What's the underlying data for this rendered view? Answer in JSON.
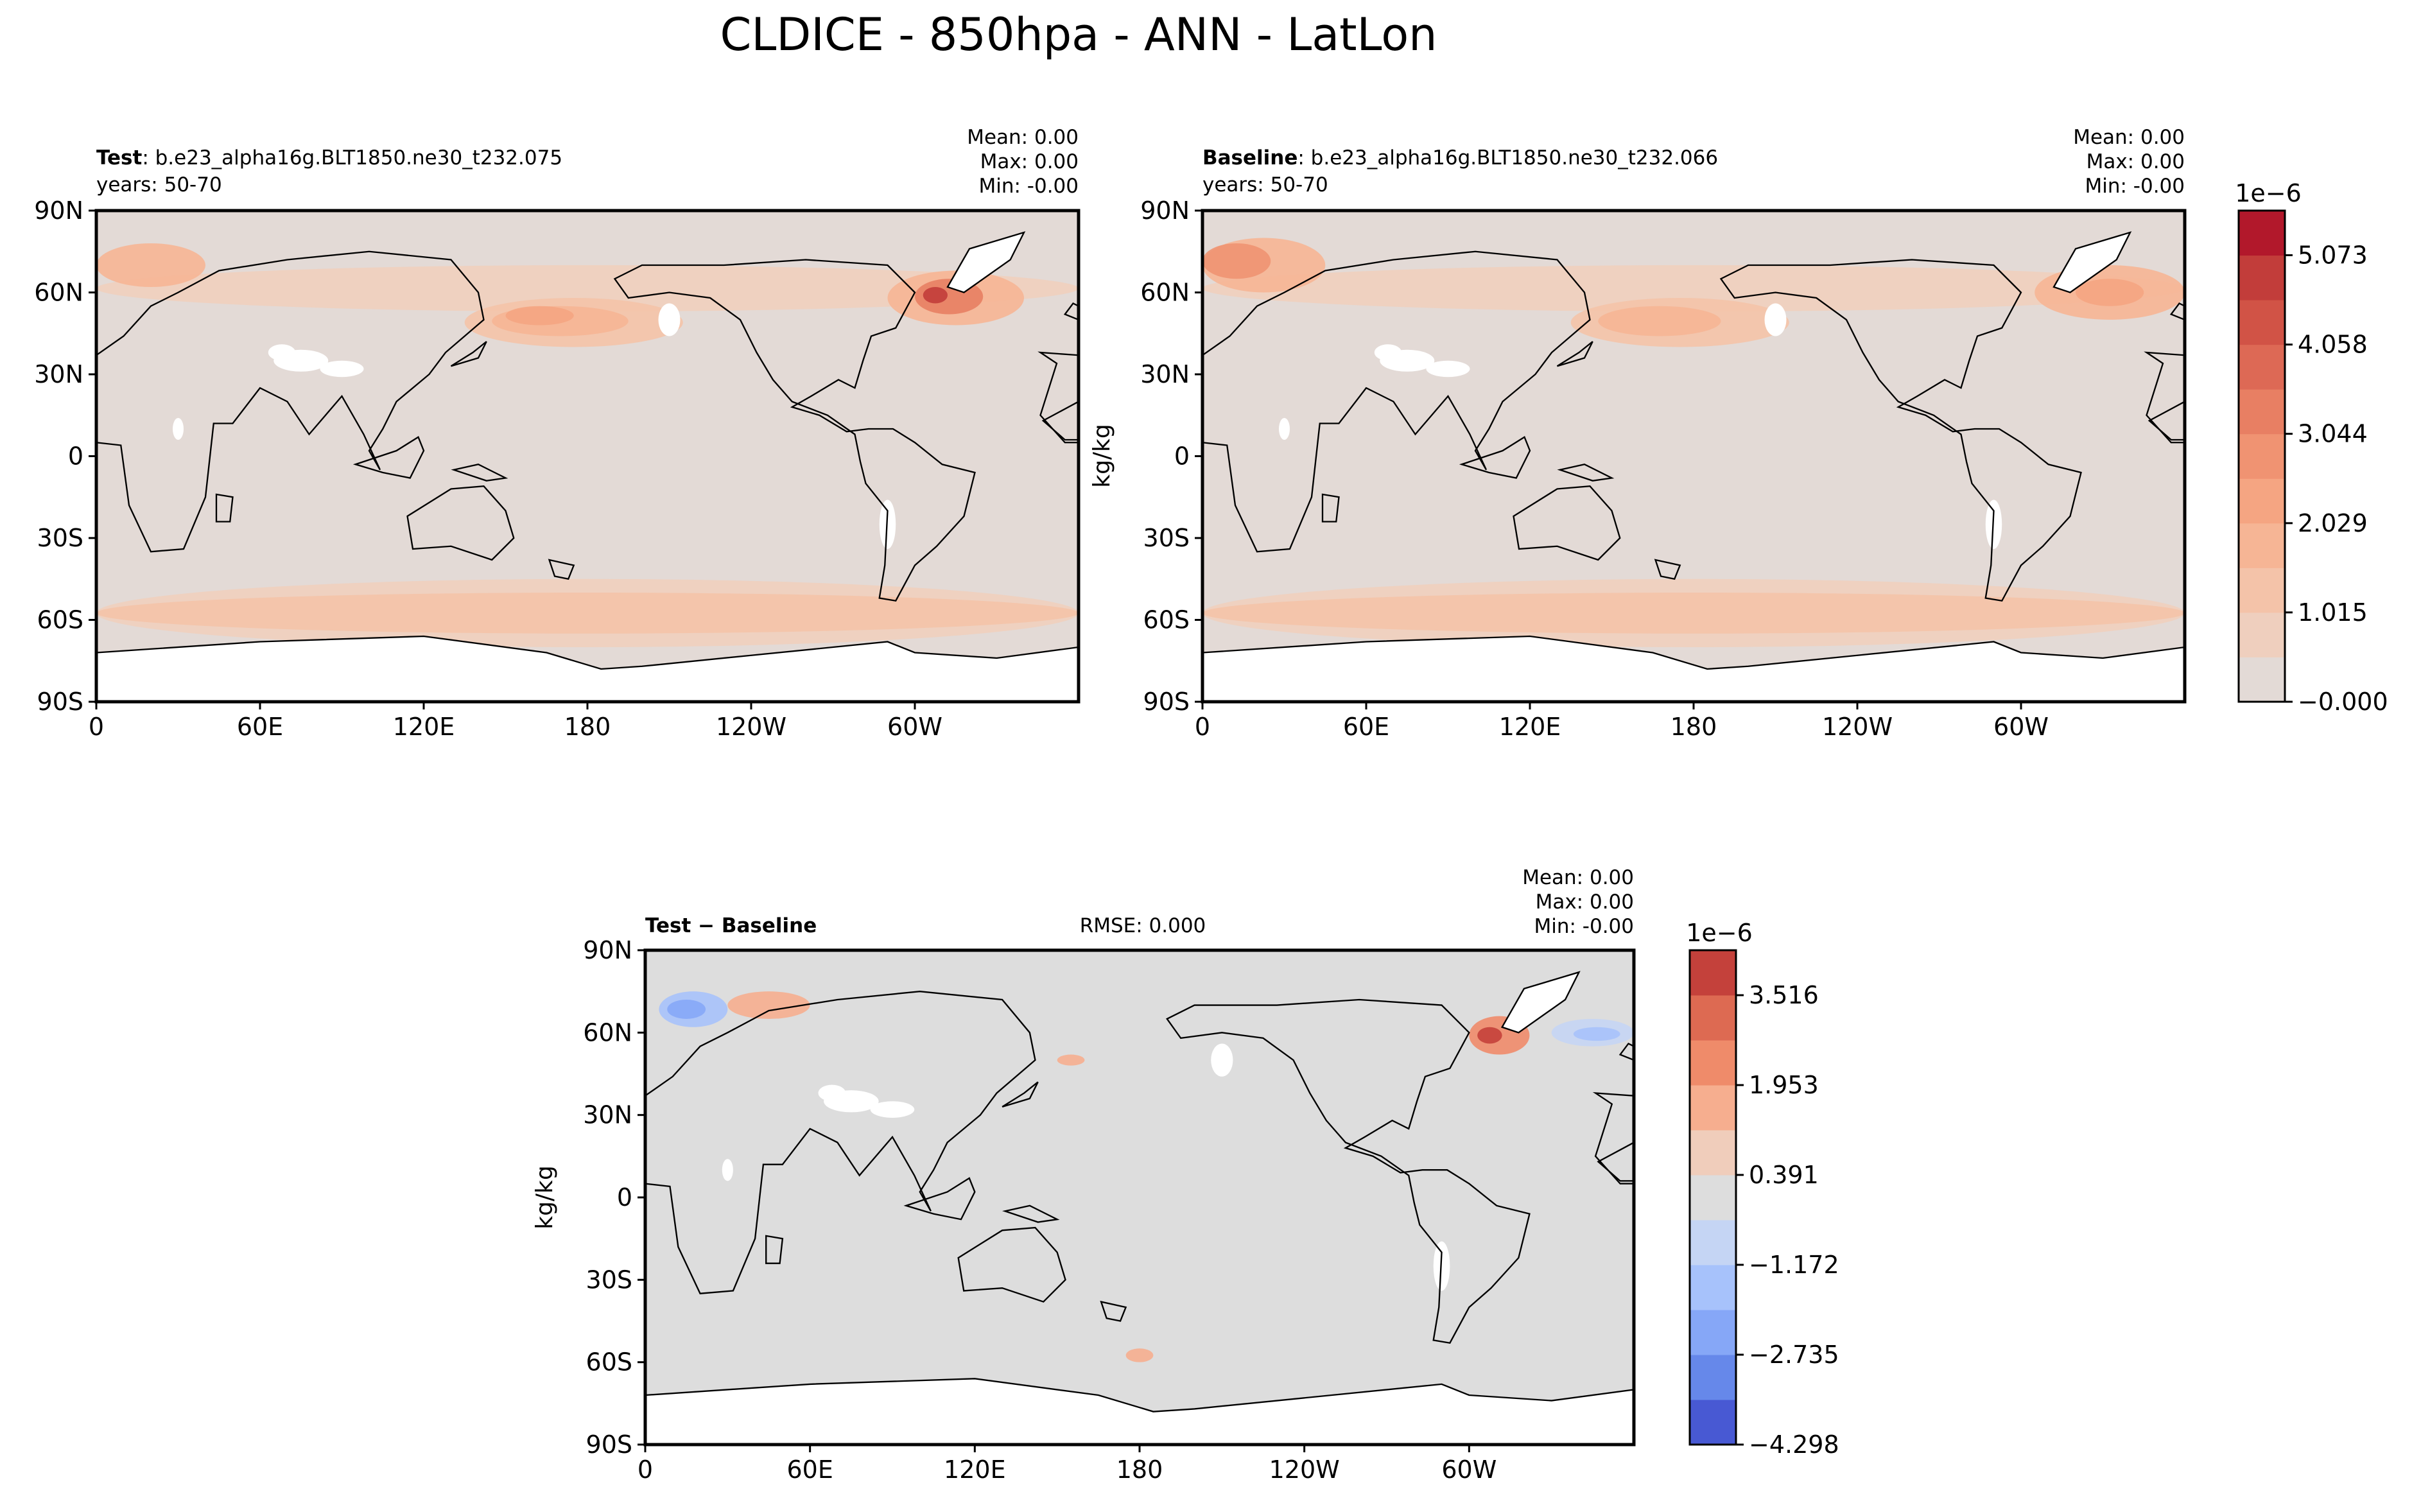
{
  "figure": {
    "title": "CLDICE - 850hpa - ANN - LatLon"
  },
  "colors": {
    "coastline": "#000000",
    "land_missing": "#ffffff",
    "seq_scale": [
      "#e3dad6",
      "#efcfbe",
      "#f4c3a9",
      "#f6b595",
      "#f5a582",
      "#f09372",
      "#e87f63",
      "#dd6955",
      "#d15346",
      "#c23d3a",
      "#b2182b"
    ],
    "div_scale": [
      "#4859d3",
      "#6688ea",
      "#86a7f7",
      "#a7c2fb",
      "#c5d5f4",
      "#dddddd",
      "#f0cdbb",
      "#f6ae8f",
      "#ef8b6a",
      "#dd6a52",
      "#c4413b"
    ]
  },
  "chart_data": [
    {
      "type": "heatmap",
      "panel": "test",
      "label_bold": "Test",
      "label_rest": ": b.e23_alpha16g.BLT1850.ne30_t232.075",
      "years": "years: 50-70",
      "stats": {
        "mean": "Mean:  0.00",
        "max": "Max:  0.00",
        "min": "Min: -0.00"
      },
      "y_ticks": [
        "90N",
        "60N",
        "30N",
        "0",
        "30S",
        "60S",
        "90S"
      ],
      "x_ticks": [
        "0",
        "60E",
        "120E",
        "180",
        "120W",
        "60W"
      ],
      "xlim": [
        0,
        360
      ],
      "ylim": [
        -90,
        90
      ],
      "ylabel": "",
      "regions": [
        {
          "lon": [
            0,
            360
          ],
          "lat": [
            53,
            70
          ],
          "level": 1
        },
        {
          "lon": [
            0,
            360
          ],
          "lat": [
            -70,
            -45
          ],
          "level": 1
        },
        {
          "lon": [
            0,
            360
          ],
          "lat": [
            -65,
            -50
          ],
          "level": 2
        },
        {
          "lon": [
            0,
            40
          ],
          "lat": [
            62,
            78
          ],
          "level": 3
        },
        {
          "lon": [
            135,
            215
          ],
          "lat": [
            40,
            58
          ],
          "level": 2
        },
        {
          "lon": [
            145,
            195
          ],
          "lat": [
            44,
            55
          ],
          "level": 3
        },
        {
          "lon": [
            150,
            175
          ],
          "lat": [
            48,
            55
          ],
          "level": 4
        },
        {
          "lon": [
            290,
            340
          ],
          "lat": [
            48,
            68
          ],
          "level": 3
        },
        {
          "lon": [
            300,
            325
          ],
          "lat": [
            52,
            65
          ],
          "level": 6
        },
        {
          "lon": [
            303,
            312
          ],
          "lat": [
            56,
            62
          ],
          "level": 9
        }
      ]
    },
    {
      "type": "heatmap",
      "panel": "baseline",
      "label_bold": "Baseline",
      "label_rest": ": b.e23_alpha16g.BLT1850.ne30_t232.066",
      "years": "years: 50-70",
      "stats": {
        "mean": "Mean:  0.00",
        "max": "Max:  0.00",
        "min": "Min: -0.00"
      },
      "y_ticks": [
        "90N",
        "60N",
        "30N",
        "0",
        "30S",
        "60S",
        "90S"
      ],
      "x_ticks": [
        "0",
        "60E",
        "120E",
        "180",
        "120W",
        "60W"
      ],
      "xlim": [
        0,
        360
      ],
      "ylim": [
        -90,
        90
      ],
      "ylabel": "kg/kg",
      "regions": [
        {
          "lon": [
            0,
            360
          ],
          "lat": [
            53,
            70
          ],
          "level": 1
        },
        {
          "lon": [
            0,
            360
          ],
          "lat": [
            -70,
            -45
          ],
          "level": 1
        },
        {
          "lon": [
            0,
            360
          ],
          "lat": [
            -65,
            -50
          ],
          "level": 2
        },
        {
          "lon": [
            0,
            45
          ],
          "lat": [
            60,
            80
          ],
          "level": 3
        },
        {
          "lon": [
            0,
            25
          ],
          "lat": [
            65,
            78
          ],
          "level": 5
        },
        {
          "lon": [
            135,
            215
          ],
          "lat": [
            40,
            58
          ],
          "level": 2
        },
        {
          "lon": [
            145,
            190
          ],
          "lat": [
            44,
            55
          ],
          "level": 3
        },
        {
          "lon": [
            305,
            360
          ],
          "lat": [
            50,
            70
          ],
          "level": 3
        },
        {
          "lon": [
            320,
            345
          ],
          "lat": [
            55,
            65
          ],
          "level": 4
        }
      ],
      "colorbar": {
        "exponent": "1e−6",
        "tick_labels": [
          "−0.000",
          "1.015",
          "2.029",
          "3.044",
          "4.058",
          "5.073"
        ],
        "tick_values": [
          0,
          1.015,
          2.029,
          3.044,
          4.058,
          5.073
        ],
        "range": [
          0,
          5.58
        ]
      }
    },
    {
      "type": "heatmap",
      "panel": "difference",
      "label_bold": "Test",
      "label_rest": " − Baseline",
      "rmse": "RMSE: 0.000",
      "stats": {
        "mean": "Mean:  0.00",
        "max": "Max:  0.00",
        "min": "Min: -0.00"
      },
      "y_ticks": [
        "90N",
        "60N",
        "30N",
        "0",
        "30S",
        "60S",
        "90S"
      ],
      "x_ticks": [
        "0",
        "60E",
        "120E",
        "180",
        "120W",
        "60W"
      ],
      "xlim": [
        0,
        360
      ],
      "ylim": [
        -90,
        90
      ],
      "ylabel": "kg/kg",
      "regions": [
        {
          "lon": [
            5,
            30
          ],
          "lat": [
            62,
            75
          ],
          "level": 3
        },
        {
          "lon": [
            8,
            22
          ],
          "lat": [
            65,
            72
          ],
          "level": 2
        },
        {
          "lon": [
            330,
            360
          ],
          "lat": [
            55,
            65
          ],
          "level": 4
        },
        {
          "lon": [
            338,
            355
          ],
          "lat": [
            57,
            62
          ],
          "level": 3
        },
        {
          "lon": [
            300,
            322
          ],
          "lat": [
            52,
            66
          ],
          "level": 7
        },
        {
          "lon": [
            303,
            312
          ],
          "lat": [
            56,
            62
          ],
          "level": 9
        },
        {
          "lon": [
            30,
            60
          ],
          "lat": [
            65,
            75
          ],
          "level": 6
        },
        {
          "lon": [
            150,
            160
          ],
          "lat": [
            48,
            52
          ],
          "level": 6
        },
        {
          "lon": [
            175,
            185
          ],
          "lat": [
            -60,
            -55
          ],
          "level": 6
        }
      ],
      "colorbar": {
        "exponent": "1e−6",
        "tick_labels": [
          "−4.298",
          "−2.735",
          "−1.172",
          "0.391",
          "1.953",
          "3.516"
        ],
        "tick_values": [
          -4.298,
          -2.735,
          -1.172,
          0.391,
          1.953,
          3.516
        ],
        "range": [
          -4.298,
          4.298
        ]
      }
    }
  ]
}
